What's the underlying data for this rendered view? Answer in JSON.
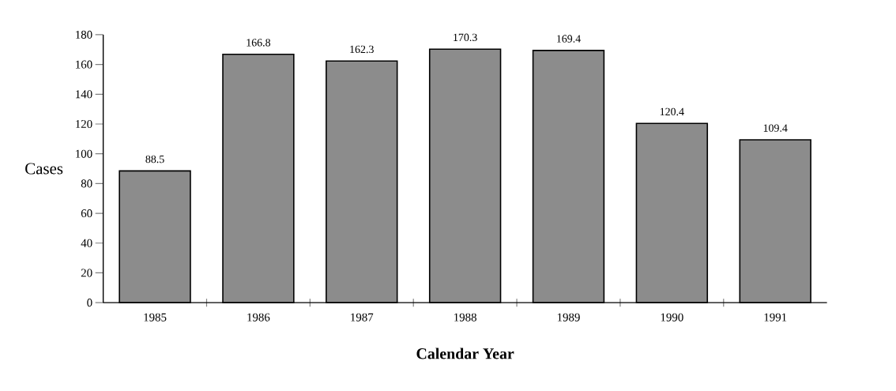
{
  "chart_data": {
    "type": "bar",
    "xlabel": "Calendar Year",
    "ylabel": "Cases",
    "categories": [
      "1985",
      "1986",
      "1987",
      "1988",
      "1989",
      "1990",
      "1991"
    ],
    "values": [
      88.5,
      166.8,
      162.3,
      170.3,
      169.4,
      120.4,
      109.4
    ],
    "color": "#8c8c8c",
    "data_labels": true,
    "grid": false,
    "ylim": [
      0,
      180
    ],
    "yticks": [
      0,
      20,
      40,
      60,
      80,
      100,
      120,
      140,
      160,
      180
    ]
  }
}
